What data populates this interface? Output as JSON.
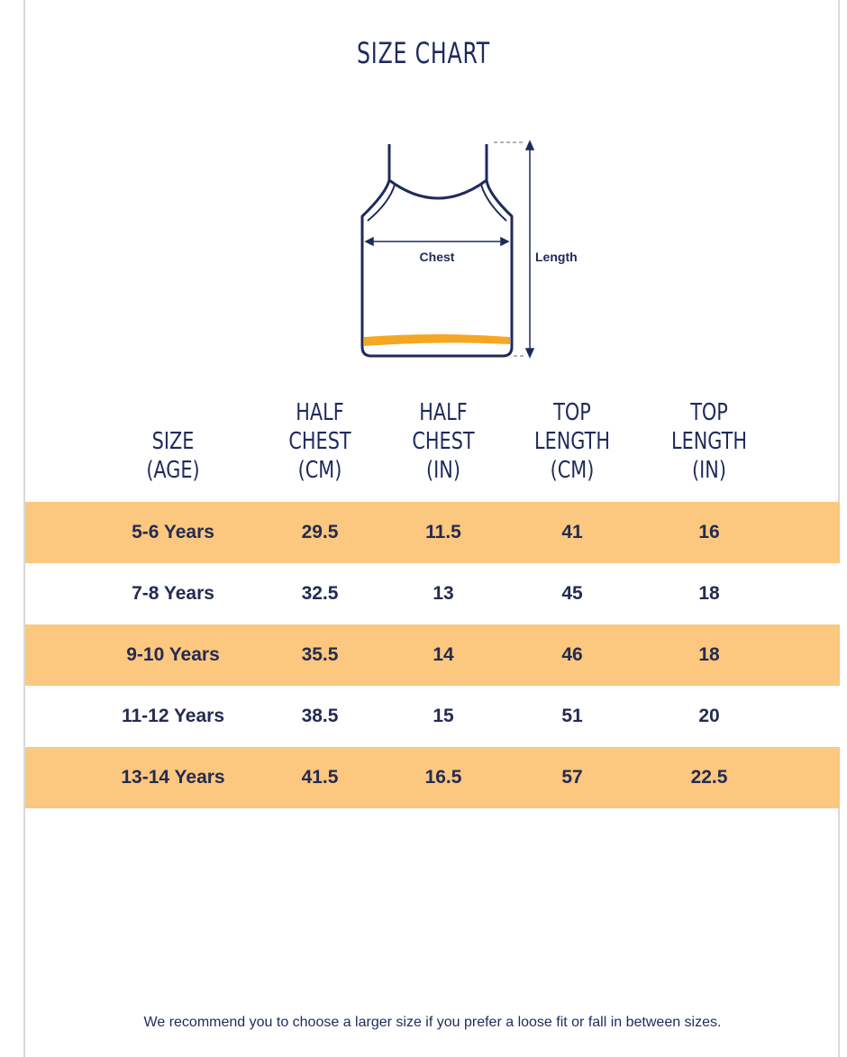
{
  "title": "SIZE CHART",
  "diagram": {
    "chest_label": "Chest",
    "length_label": "Length"
  },
  "table": {
    "header": [
      [
        "SIZE",
        "(AGE)"
      ],
      [
        "HALF",
        "CHEST",
        "(CM)"
      ],
      [
        "HALF",
        "CHEST",
        "(IN)"
      ],
      [
        "TOP",
        "LENGTH",
        "(CM)"
      ],
      [
        "TOP",
        "LENGTH",
        "(IN)"
      ]
    ],
    "rows": [
      [
        "5-6 Years",
        29.5,
        11.5,
        41,
        16
      ],
      [
        "7-8 Years",
        32.5,
        13,
        45,
        18
      ],
      [
        "9-10 Years",
        35.5,
        14,
        46,
        18
      ],
      [
        "11-12 Years",
        38.5,
        15,
        51,
        20
      ],
      [
        "13-14 Years",
        41.5,
        16.5,
        57,
        22.5
      ]
    ]
  },
  "footer": "We recommend you to choose a larger size if you prefer a loose fit or fall in between sizes."
}
